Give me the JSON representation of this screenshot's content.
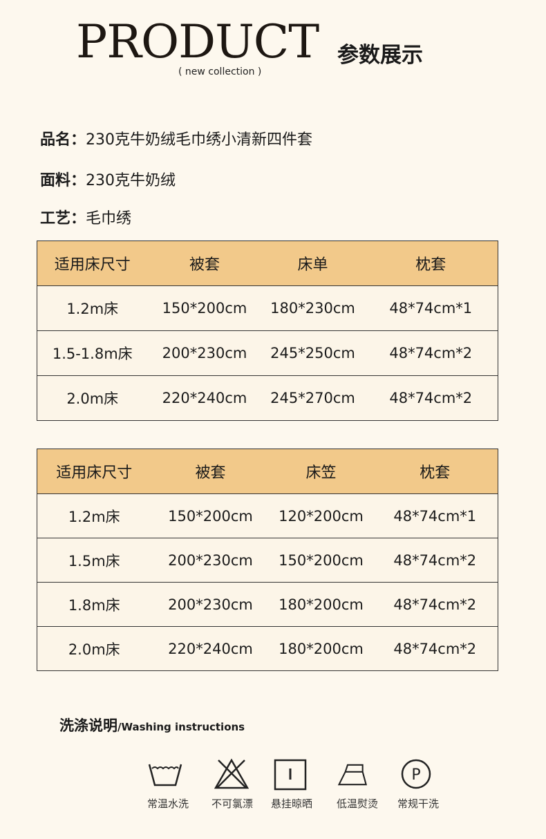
{
  "header": {
    "brand": "PRODUCT",
    "title_cn": "参数展示",
    "subtitle": "(  new collection  )"
  },
  "info": [
    {
      "label": "品名：",
      "value": "230克牛奶绒毛巾绣小清新四件套"
    },
    {
      "label": "面料：",
      "value": "230克牛奶绒"
    },
    {
      "label": "工艺：",
      "value": "毛巾绣"
    }
  ],
  "table1": {
    "headers": [
      "适用床尺寸",
      "被套",
      "床单",
      "枕套"
    ],
    "rows": [
      [
        "1.2m床",
        "150*200cm",
        "180*230cm",
        "48*74cm*1"
      ],
      [
        "1.5-1.8m床",
        "200*230cm",
        "245*250cm",
        "48*74cm*2"
      ],
      [
        "2.0m床",
        "220*240cm",
        "245*270cm",
        "48*74cm*2"
      ]
    ]
  },
  "table2": {
    "headers": [
      "适用床尺寸",
      "被套",
      "床笠",
      "枕套"
    ],
    "rows": [
      [
        "1.2m床",
        "150*200cm",
        "120*200cm",
        "48*74cm*1"
      ],
      [
        "1.5m床",
        "200*230cm",
        "150*200cm",
        "48*74cm*2"
      ],
      [
        "1.8m床",
        "200*230cm",
        "180*200cm",
        "48*74cm*2"
      ],
      [
        "2.0m床",
        "220*240cm",
        "180*200cm",
        "48*74cm*2"
      ]
    ]
  },
  "washing": {
    "title": "洗涤说明",
    "title_en": "/Washing instructions",
    "items": [
      {
        "icon": "wash-tub-icon",
        "label": "常温水洗"
      },
      {
        "icon": "no-bleach-icon",
        "label": "不可氯漂"
      },
      {
        "icon": "hang-dry-icon",
        "label": "悬挂晾晒"
      },
      {
        "icon": "iron-low-icon",
        "label": "低温熨烫"
      },
      {
        "icon": "dry-clean-p-icon",
        "label": "常规干洗"
      }
    ]
  },
  "colors": {
    "header_row": "#f2c98a",
    "background": "#fdf8ee"
  }
}
